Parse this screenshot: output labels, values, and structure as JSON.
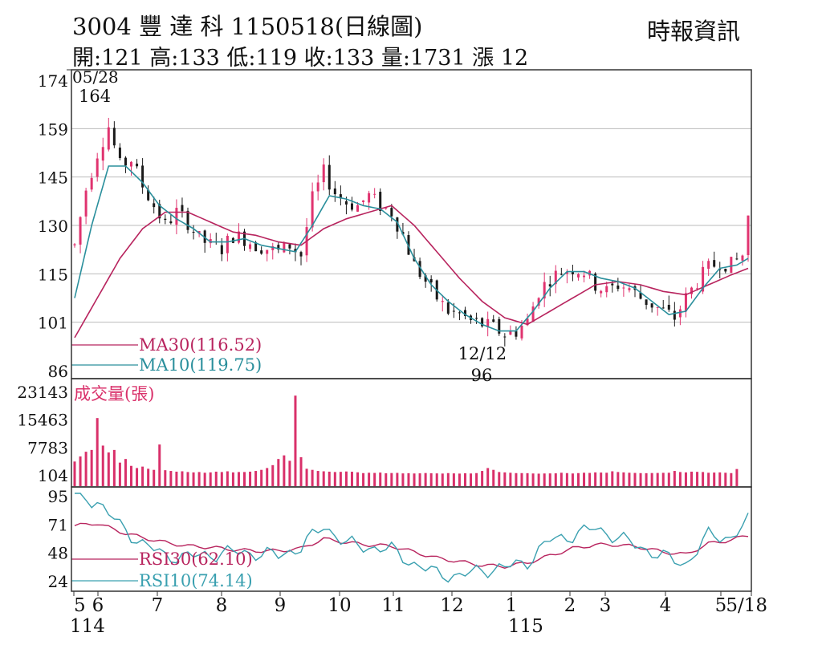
{
  "header": {
    "title": "3004 豐 達 科 1150518(日線圖)",
    "stats": "開:121 高:133 低:119 收:133 量:1731 漲 12",
    "source": "時報資訊"
  },
  "colors": {
    "up": "#e0336f",
    "down": "#1a1a1a",
    "ma30": "#b8245e",
    "ma10": "#2a8f9c",
    "rsi30": "#b8245e",
    "rsi10": "#3aa0b0",
    "volume": "#d9306a",
    "grid": "#bbbbbb",
    "border": "#333333"
  },
  "chart_data": [
    {
      "type": "line",
      "subtype": "candlestick",
      "title": "3004 豐 達 科 1150518(日線圖)",
      "y_ticks": [
        "174",
        "159",
        "145",
        "130",
        "115",
        "101",
        "86"
      ],
      "ylim": [
        86,
        174
      ],
      "grid": true,
      "annotations": [
        {
          "label": "05/28",
          "value": "164",
          "kind": "high"
        },
        {
          "label": "12/12",
          "value": "96",
          "kind": "low"
        }
      ],
      "last_candle": {
        "open": 121,
        "high": 133,
        "low": 119,
        "close": 133
      },
      "price_path": [
        [
          0,
          124
        ],
        [
          2,
          141
        ],
        [
          4,
          152
        ],
        [
          6,
          160
        ],
        [
          8,
          148
        ],
        [
          10,
          150
        ],
        [
          12,
          142
        ],
        [
          14,
          136
        ],
        [
          16,
          130
        ],
        [
          18,
          134
        ],
        [
          20,
          131
        ],
        [
          22,
          126
        ],
        [
          24,
          124
        ],
        [
          26,
          123
        ],
        [
          28,
          127
        ],
        [
          30,
          126
        ],
        [
          32,
          124
        ],
        [
          34,
          123
        ],
        [
          36,
          122
        ],
        [
          38,
          124
        ],
        [
          40,
          121
        ],
        [
          42,
          138
        ],
        [
          44,
          146
        ],
        [
          46,
          140
        ],
        [
          48,
          137
        ],
        [
          50,
          136
        ],
        [
          52,
          139
        ],
        [
          54,
          136
        ],
        [
          56,
          134
        ],
        [
          58,
          127
        ],
        [
          60,
          118
        ],
        [
          62,
          113
        ],
        [
          64,
          108
        ],
        [
          66,
          104
        ],
        [
          68,
          103
        ],
        [
          70,
          101
        ],
        [
          72,
          100
        ],
        [
          74,
          99
        ],
        [
          76,
          97
        ],
        [
          78,
          98
        ],
        [
          80,
          101
        ],
        [
          82,
          110
        ],
        [
          84,
          114
        ],
        [
          86,
          116
        ],
        [
          88,
          117
        ],
        [
          90,
          116
        ],
        [
          92,
          112
        ],
        [
          94,
          110
        ],
        [
          96,
          112
        ],
        [
          98,
          111
        ],
        [
          100,
          108
        ],
        [
          102,
          106
        ],
        [
          104,
          104
        ],
        [
          106,
          102
        ],
        [
          108,
          108
        ],
        [
          110,
          113
        ],
        [
          112,
          117
        ],
        [
          114,
          119
        ],
        [
          116,
          118
        ],
        [
          118,
          121
        ],
        [
          119,
          133
        ]
      ],
      "series": [
        {
          "name": "MA30",
          "legend": "MA30(116.52)",
          "points": [
            [
              0,
              96
            ],
            [
              4,
              108
            ],
            [
              8,
              120
            ],
            [
              12,
              129
            ],
            [
              16,
              134
            ],
            [
              20,
              134
            ],
            [
              24,
              131
            ],
            [
              28,
              128
            ],
            [
              32,
              127
            ],
            [
              36,
              125
            ],
            [
              40,
              124
            ],
            [
              44,
              129
            ],
            [
              48,
              132
            ],
            [
              52,
              134
            ],
            [
              56,
              136
            ],
            [
              60,
              130
            ],
            [
              64,
              122
            ],
            [
              68,
              114
            ],
            [
              72,
              107
            ],
            [
              76,
              102
            ],
            [
              80,
              100
            ],
            [
              84,
              104
            ],
            [
              88,
              108
            ],
            [
              92,
              112
            ],
            [
              96,
              113
            ],
            [
              100,
              112
            ],
            [
              104,
              110
            ],
            [
              108,
              109
            ],
            [
              112,
              112
            ],
            [
              116,
              115
            ],
            [
              119,
              117
            ]
          ]
        },
        {
          "name": "MA10",
          "legend": "MA10(119.75)",
          "points": [
            [
              0,
              108
            ],
            [
              3,
              130
            ],
            [
              6,
              148
            ],
            [
              9,
              148
            ],
            [
              12,
              143
            ],
            [
              15,
              136
            ],
            [
              18,
              132
            ],
            [
              21,
              129
            ],
            [
              24,
              125
            ],
            [
              27,
              125
            ],
            [
              30,
              126
            ],
            [
              33,
              124
            ],
            [
              36,
              123
            ],
            [
              39,
              122
            ],
            [
              42,
              130
            ],
            [
              45,
              139
            ],
            [
              48,
              138
            ],
            [
              51,
              136
            ],
            [
              54,
              135
            ],
            [
              57,
              131
            ],
            [
              60,
              120
            ],
            [
              63,
              112
            ],
            [
              66,
              107
            ],
            [
              69,
              103
            ],
            [
              72,
              100
            ],
            [
              75,
              98
            ],
            [
              78,
              98
            ],
            [
              81,
              104
            ],
            [
              84,
              111
            ],
            [
              87,
              116
            ],
            [
              90,
              116
            ],
            [
              93,
              114
            ],
            [
              96,
              113
            ],
            [
              99,
              111
            ],
            [
              102,
              107
            ],
            [
              105,
              103
            ],
            [
              108,
              104
            ],
            [
              111,
              111
            ],
            [
              114,
              117
            ],
            [
              117,
              118
            ],
            [
              119,
              120
            ]
          ]
        }
      ]
    },
    {
      "type": "bar",
      "title": "成交量(張)",
      "y_ticks": [
        "23143",
        "15463",
        "7783",
        "104"
      ],
      "ylim": [
        104,
        23143
      ],
      "note": "daily trading volume",
      "last_value": 1731,
      "values": [
        3800,
        5200,
        6500,
        7000,
        15800,
        8200,
        6300,
        7000,
        3500,
        4500,
        2600,
        2000,
        2400,
        1800,
        1500,
        8500,
        1400,
        1200,
        1000,
        1100,
        900,
        800,
        900,
        700,
        800,
        1000,
        900,
        1100,
        800,
        900,
        900,
        1000,
        1200,
        1500,
        2000,
        2800,
        4500,
        5500,
        4000,
        22000,
        5000,
        1800,
        1500,
        1200,
        1100,
        1000,
        900,
        950,
        1050,
        980,
        820,
        600,
        700,
        650,
        750,
        560,
        620,
        660,
        520,
        580,
        500,
        540,
        620,
        560,
        520,
        480,
        600,
        520,
        470,
        560,
        500,
        600,
        1200,
        2000,
        1500,
        900,
        800,
        700,
        600,
        600,
        580,
        500,
        450,
        500,
        520,
        540,
        700,
        600,
        500,
        600,
        700,
        650,
        800,
        750,
        700,
        1100,
        900,
        800,
        700,
        650,
        600,
        580,
        620,
        640,
        680,
        700,
        1200,
        900,
        800,
        1000,
        950,
        900,
        700,
        750,
        800,
        700,
        600,
        1731
      ]
    },
    {
      "type": "line",
      "title": "RSI",
      "y_ticks": [
        "95",
        "71",
        "48",
        "24"
      ],
      "ylim": [
        24,
        95
      ],
      "series": [
        {
          "name": "RSI30",
          "legend": "RSI30(62.10)",
          "points": [
            [
              0,
              70
            ],
            [
              4,
              72
            ],
            [
              8,
              65
            ],
            [
              12,
              60
            ],
            [
              16,
              56
            ],
            [
              20,
              53
            ],
            [
              24,
              52
            ],
            [
              28,
              50
            ],
            [
              32,
              49
            ],
            [
              36,
              49
            ],
            [
              40,
              51
            ],
            [
              44,
              59
            ],
            [
              48,
              56
            ],
            [
              52,
              54
            ],
            [
              56,
              53
            ],
            [
              60,
              48
            ],
            [
              64,
              43
            ],
            [
              68,
              40
            ],
            [
              72,
              37
            ],
            [
              76,
              36
            ],
            [
              80,
              39
            ],
            [
              84,
              45
            ],
            [
              88,
              51
            ],
            [
              92,
              54
            ],
            [
              96,
              54
            ],
            [
              100,
              52
            ],
            [
              104,
              48
            ],
            [
              108,
              46
            ],
            [
              112,
              55
            ],
            [
              116,
              58
            ],
            [
              119,
              62
            ]
          ]
        },
        {
          "name": "RSI10",
          "legend": "RSI10(74.14)",
          "points": [
            [
              0,
              96
            ],
            [
              4,
              90
            ],
            [
              8,
              70
            ],
            [
              12,
              55
            ],
            [
              16,
              45
            ],
            [
              20,
              44
            ],
            [
              24,
              46
            ],
            [
              28,
              48
            ],
            [
              32,
              47
            ],
            [
              36,
              45
            ],
            [
              40,
              52
            ],
            [
              44,
              70
            ],
            [
              48,
              55
            ],
            [
              52,
              52
            ],
            [
              56,
              50
            ],
            [
              60,
              38
            ],
            [
              64,
              30
            ],
            [
              68,
              28
            ],
            [
              72,
              33
            ],
            [
              76,
              35
            ],
            [
              80,
              40
            ],
            [
              84,
              58
            ],
            [
              88,
              62
            ],
            [
              92,
              68
            ],
            [
              96,
              60
            ],
            [
              100,
              52
            ],
            [
              104,
              44
            ],
            [
              108,
              38
            ],
            [
              112,
              62
            ],
            [
              116,
              60
            ],
            [
              119,
              74
            ]
          ]
        }
      ]
    }
  ],
  "x_axis": {
    "labels": [
      "5",
      "6",
      "7",
      "8",
      "9",
      "10",
      "11",
      "12",
      "1",
      "2",
      "3",
      "4",
      "5",
      "5/18"
    ],
    "year_labels": [
      "114",
      "115"
    ]
  }
}
